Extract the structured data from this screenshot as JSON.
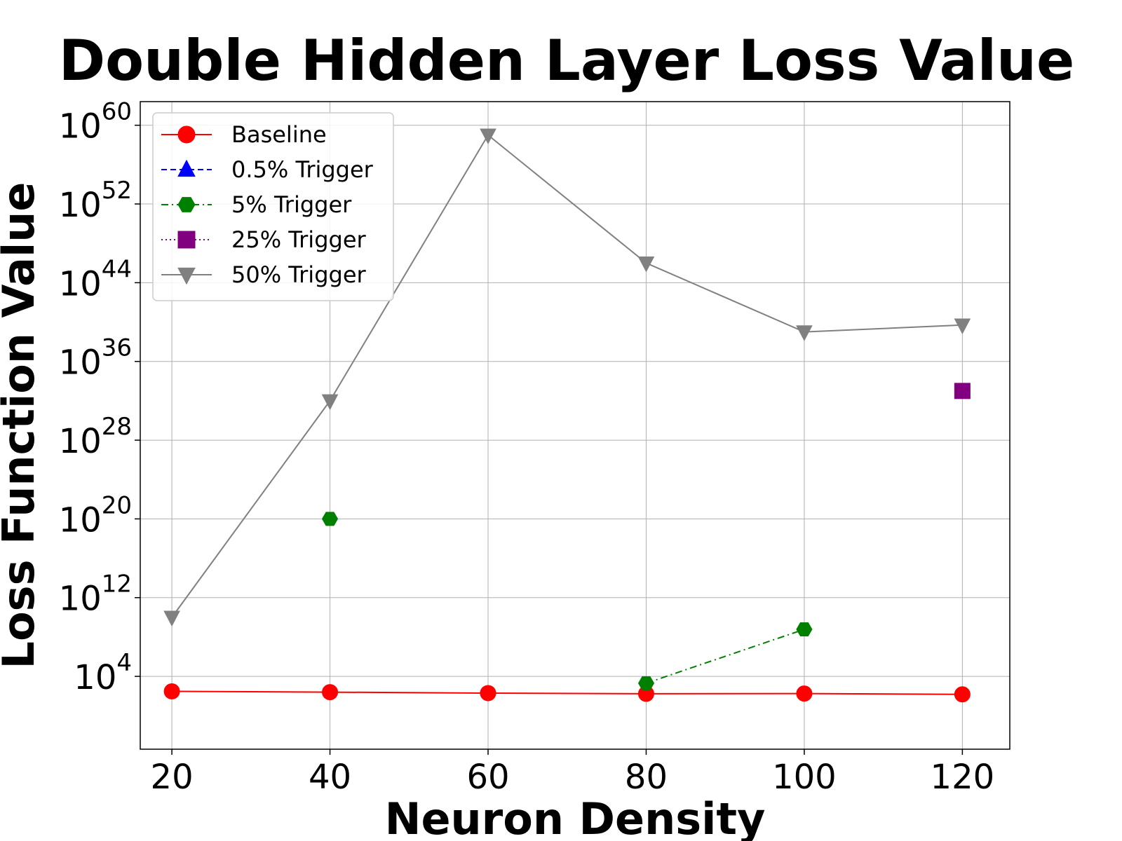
{
  "chart_data": {
    "type": "line",
    "title": "Double Hidden Layer Loss Value",
    "xlabel": "Neuron Density",
    "ylabel": "Loss Function Value",
    "yscale": "log",
    "x": [
      20,
      40,
      60,
      80,
      100,
      120
    ],
    "xlim": [
      16,
      126
    ],
    "ylim_exponent": [
      -3.4,
      62.4
    ],
    "y_ticks": [
      {
        "base": "10",
        "exp": "4"
      },
      {
        "base": "10",
        "exp": "12"
      },
      {
        "base": "10",
        "exp": "20"
      },
      {
        "base": "10",
        "exp": "28"
      },
      {
        "base": "10",
        "exp": "36"
      },
      {
        "base": "10",
        "exp": "44"
      },
      {
        "base": "10",
        "exp": "52"
      },
      {
        "base": "10",
        "exp": "60"
      }
    ],
    "grid": true,
    "legend_position": "top-left",
    "series": [
      {
        "name": "Baseline",
        "color": "#ff0000",
        "marker": "circle",
        "linestyle": "solid",
        "values": [
          300,
          250,
          200,
          170,
          180,
          150
        ]
      },
      {
        "name": "0.5% Trigger",
        "color": "#0000ff",
        "marker": "triangle-up",
        "linestyle": "dashed",
        "values": [
          null,
          null,
          null,
          null,
          null,
          null
        ]
      },
      {
        "name": "5% Trigger",
        "color": "#008000",
        "marker": "hexagon",
        "linestyle": "dashdot",
        "values": [
          null,
          1e+20,
          null,
          2000,
          600000000.0,
          null
        ]
      },
      {
        "name": "25% Trigger",
        "color": "#800080",
        "marker": "square",
        "linestyle": "dotted",
        "values": [
          null,
          null,
          null,
          null,
          null,
          1e+33
        ]
      },
      {
        "name": "50% Trigger",
        "color": "#808080",
        "marker": "triangle-down",
        "linestyle": "solid",
        "values": [
          10000000000.0,
          1e+32,
          1e+59,
          1e+46,
          1e+39,
          5e+39
        ]
      }
    ]
  }
}
